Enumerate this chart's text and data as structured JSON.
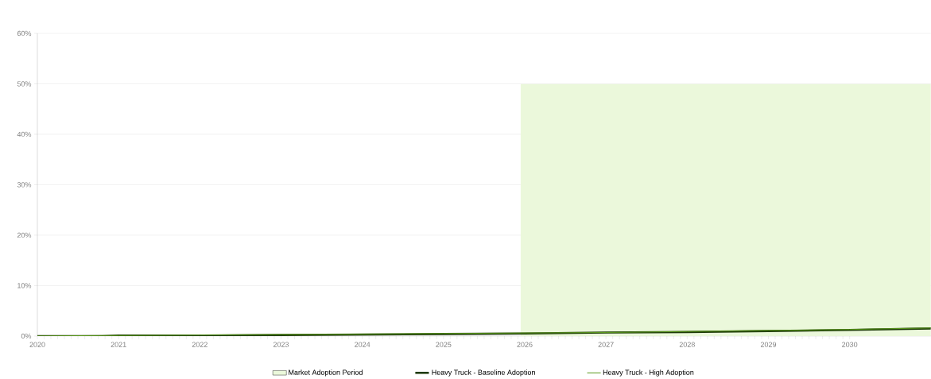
{
  "chart_data": {
    "type": "line",
    "xlim": [
      2020,
      2031
    ],
    "xticks": [
      2020,
      2021,
      2022,
      2023,
      2024,
      2025,
      2026,
      2027,
      2028,
      2029,
      2030
    ],
    "ylim": [
      0,
      60
    ],
    "yticks": [
      {
        "value": 0,
        "label": "0%"
      },
      {
        "value": 10,
        "label": "10%"
      },
      {
        "value": 20,
        "label": "20%"
      },
      {
        "value": 30,
        "label": "30%"
      },
      {
        "value": 40,
        "label": "40%"
      },
      {
        "value": 50,
        "label": "50%"
      },
      {
        "value": 60,
        "label": "60%"
      }
    ],
    "grid": "y",
    "legend": "bottom",
    "series": [
      {
        "name": "Market Adoption Period",
        "type": "area",
        "color": "#ebf8db",
        "x": [
          2025.95,
          2031
        ],
        "values": [
          50,
          50
        ]
      },
      {
        "name": "Heavy Truck - Baseline Adoption",
        "color": "#1e3a0a",
        "x": [
          2020,
          2020.8,
          2021,
          2022,
          2023,
          2024,
          2025,
          2026,
          2027,
          2028,
          2029,
          2030,
          2031
        ],
        "values": [
          0,
          0,
          0.1,
          0.1,
          0.2,
          0.3,
          0.4,
          0.5,
          0.7,
          0.8,
          1.0,
          1.2,
          1.5
        ]
      },
      {
        "name": "Heavy Truck - High Adoption",
        "color": "#5a9a1a",
        "x": [
          2020,
          2020.8,
          2021,
          2022,
          2023,
          2024,
          2025,
          2026,
          2027,
          2028,
          2029,
          2030,
          2031
        ],
        "values": [
          0,
          0.1,
          0.1,
          0.2,
          0.3,
          0.4,
          0.5,
          0.6,
          0.7,
          0.9,
          1.1,
          1.3,
          1.6
        ]
      }
    ]
  }
}
